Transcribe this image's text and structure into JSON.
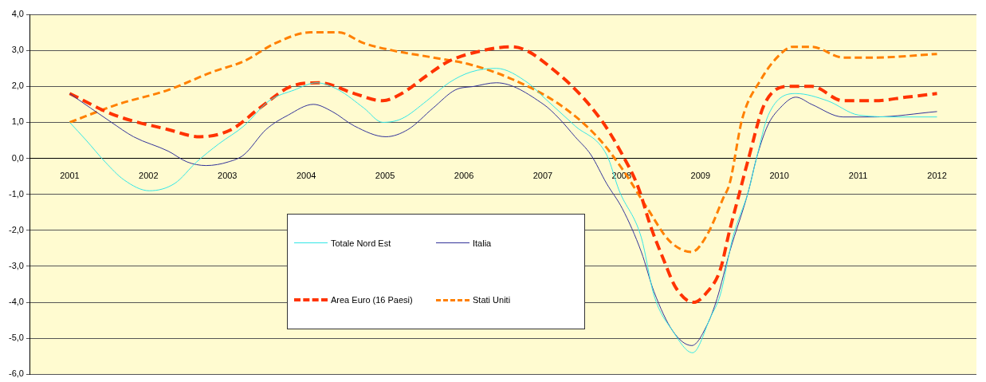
{
  "chart_data": {
    "type": "line",
    "xlim": [
      2000.5,
      2012.5
    ],
    "xticks": [
      2001,
      2002,
      2003,
      2004,
      2005,
      2006,
      2007,
      2008,
      2009,
      2010,
      2011,
      2012
    ],
    "ylim": [
      -6,
      4
    ],
    "yticks": [
      {
        "value": -6,
        "label": "-6,0"
      },
      {
        "value": -5,
        "label": "-5,0"
      },
      {
        "value": -4,
        "label": "-4,0"
      },
      {
        "value": -3,
        "label": "-3,0"
      },
      {
        "value": -2,
        "label": "-2,0"
      },
      {
        "value": -1,
        "label": "-1,0"
      },
      {
        "value": 0,
        "label": "0,0"
      },
      {
        "value": 1,
        "label": "1,0"
      },
      {
        "value": 2,
        "label": "2,0"
      },
      {
        "value": 3,
        "label": "3,0"
      },
      {
        "value": 4,
        "label": "4,0"
      }
    ],
    "grid": "y",
    "legend": "bottom left",
    "marker": "none",
    "series": [
      {
        "name": "Totale Nord Est",
        "color": "#33e6e6",
        "line_style": "solid",
        "x": [
          2001,
          2001.21,
          2001.45,
          2001.69,
          2002.01,
          2002.33,
          2002.61,
          2002.89,
          2003.21,
          2003.53,
          2003.85,
          2004.13,
          2004.41,
          2004.73,
          2004.97,
          2005.21,
          2005.53,
          2005.81,
          2006.09,
          2006.41,
          2006.81,
          2007.01,
          2007.41,
          2007.81,
          2007.97,
          2008.25,
          2008.41,
          2008.65,
          2008.9,
          2009.13,
          2009.25,
          2009.41,
          2009.61,
          2009.71,
          2009.86,
          2010.21,
          2010.61,
          2011.01,
          2011.51,
          2012
        ],
        "values": [
          1.0,
          0.5,
          -0.1,
          -0.6,
          -0.9,
          -0.7,
          -0.1,
          0.4,
          0.9,
          1.6,
          1.9,
          2.1,
          1.9,
          1.4,
          1.0,
          1.1,
          1.6,
          2.1,
          2.4,
          2.5,
          2.1,
          1.7,
          0.9,
          0.1,
          -0.9,
          -2.2,
          -3.8,
          -4.8,
          -5.4,
          -4.4,
          -3.8,
          -2.2,
          -0.9,
          0.0,
          1.2,
          1.8,
          1.6,
          1.2,
          1.15,
          1.15
        ]
      },
      {
        "name": "Italia",
        "color": "#333399",
        "line_style": "solid",
        "x": [
          2001,
          2001.53,
          2001.81,
          2002.25,
          2002.49,
          2002.73,
          2003.01,
          2003.21,
          2003.49,
          2003.77,
          2004.09,
          2004.33,
          2004.61,
          2005.01,
          2005.29,
          2005.61,
          2005.89,
          2006.13,
          2006.41,
          2007.01,
          2007.21,
          2007.41,
          2007.61,
          2007.81,
          2008.01,
          2008.25,
          2008.41,
          2008.65,
          2008.89,
          2009.09,
          2009.21,
          2009.37,
          2009.61,
          2009.71,
          2009.85,
          2010.01,
          2010.21,
          2010.41,
          2010.81,
          2011.21,
          2012
        ],
        "values": [
          1.8,
          1.0,
          0.6,
          0.2,
          -0.1,
          -0.2,
          -0.1,
          0.1,
          0.8,
          1.2,
          1.5,
          1.3,
          0.9,
          0.6,
          0.8,
          1.4,
          1.9,
          2.0,
          2.1,
          1.5,
          1.1,
          0.6,
          0.1,
          -0.7,
          -1.4,
          -2.6,
          -3.7,
          -4.8,
          -5.2,
          -4.6,
          -3.9,
          -2.6,
          -0.9,
          0.0,
          0.9,
          1.4,
          1.7,
          1.5,
          1.15,
          1.15,
          1.3
        ]
      },
      {
        "name": "Area Euro (16 Paesi)",
        "color": "#ff3300",
        "line_style": "dashed",
        "x": [
          2001,
          2001.57,
          2002.25,
          2002.65,
          2003.05,
          2003.41,
          2003.81,
          2004.17,
          2004.61,
          2004.97,
          2005.21,
          2005.53,
          2005.81,
          2006.25,
          2006.61,
          2007.17,
          2007.73,
          2008.01,
          2008.21,
          2008.37,
          2008.53,
          2008.69,
          2008.91,
          2009.09,
          2009.25,
          2009.37,
          2009.49,
          2009.61,
          2009.81,
          2010.13,
          2010.41,
          2010.81,
          2011.21,
          2011.61,
          2012
        ],
        "values": [
          1.8,
          1.2,
          0.8,
          0.6,
          0.8,
          1.4,
          2.0,
          2.1,
          1.8,
          1.6,
          1.8,
          2.3,
          2.7,
          3.0,
          3.1,
          2.4,
          1.1,
          0.1,
          -0.8,
          -1.9,
          -2.8,
          -3.6,
          -4.0,
          -3.7,
          -3.1,
          -2.0,
          -1.0,
          0.0,
          1.5,
          2.0,
          2.0,
          1.6,
          1.6,
          1.7,
          1.8
        ]
      },
      {
        "name": "Stati Uniti",
        "color": "#ff8000",
        "line_style": "dashed",
        "x": [
          2001,
          2001.61,
          2002.25,
          2002.81,
          2003.21,
          2003.61,
          2004.05,
          2004.41,
          2004.73,
          2005.09,
          2005.61,
          2006.09,
          2006.61,
          2007.21,
          2007.69,
          2008.01,
          2008.33,
          2008.61,
          2008.89,
          2009.09,
          2009.29,
          2009.37,
          2009.53,
          2009.77,
          2009.97,
          2010.17,
          2010.41,
          2010.81,
          2011.21,
          2012
        ],
        "values": [
          1.0,
          1.5,
          1.9,
          2.4,
          2.7,
          3.2,
          3.5,
          3.5,
          3.2,
          3.0,
          2.8,
          2.6,
          2.2,
          1.5,
          0.6,
          -0.3,
          -1.4,
          -2.3,
          -2.6,
          -2.1,
          -1.1,
          -0.7,
          1.1,
          2.2,
          2.8,
          3.1,
          3.1,
          2.8,
          2.8,
          2.9
        ]
      }
    ]
  }
}
